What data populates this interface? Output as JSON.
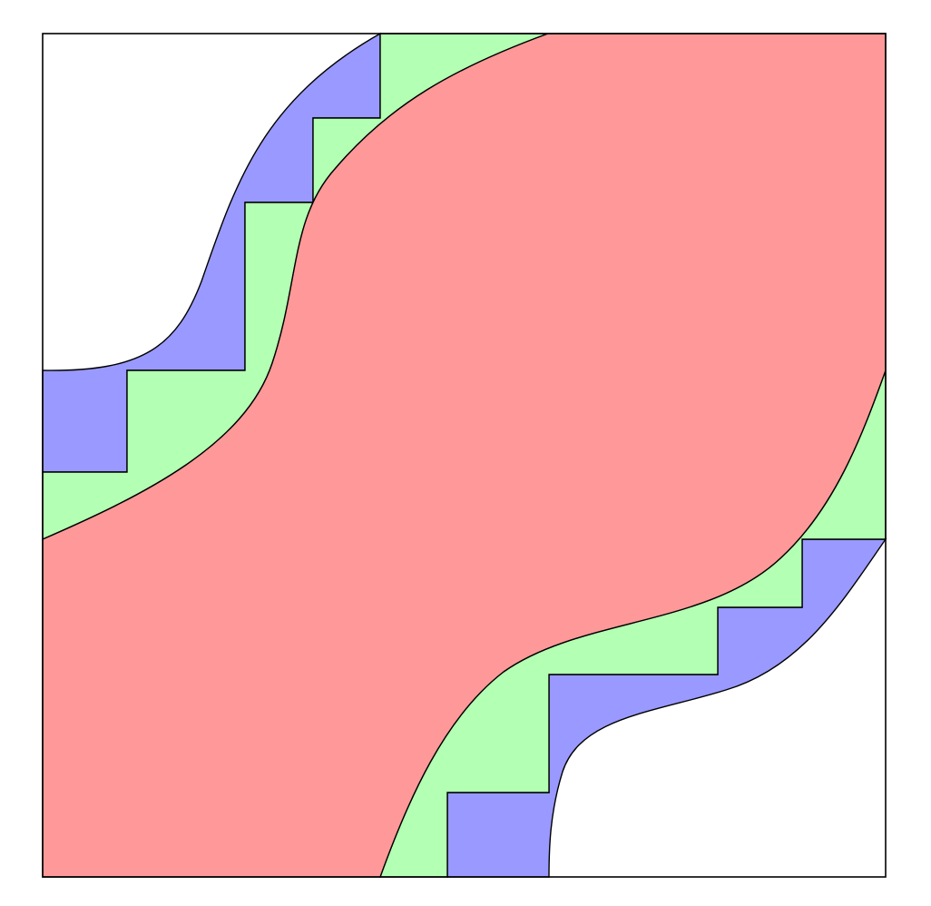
{
  "diagram": {
    "background": "#ffffff",
    "stroke": "#000000",
    "regions": [
      {
        "key": "outer_band",
        "color": "#9999ff"
      },
      {
        "key": "middle_band",
        "color": "#b3ffb3"
      },
      {
        "key": "center_band",
        "color": "#ff9999"
      }
    ],
    "staircase_steps_per_side": 4
  }
}
